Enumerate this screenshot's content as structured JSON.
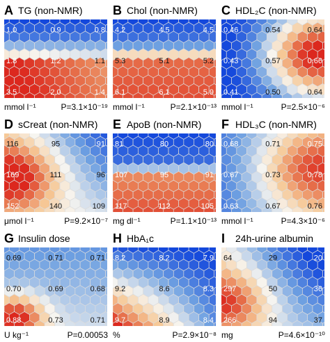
{
  "chart_data": [
    {
      "type": "heatmap",
      "panel_letter": "A",
      "title": "TG (non-NMR)",
      "unit": "mmol l⁻¹",
      "pvalue": "P=3.1×10⁻¹⁹",
      "labels": [
        {
          "pos": "top-left",
          "text": "1.0"
        },
        {
          "pos": "top-mid",
          "text": "0.9"
        },
        {
          "pos": "top-right",
          "text": "0.8"
        },
        {
          "pos": "mid-left",
          "text": "1.8"
        },
        {
          "pos": "mid-mid",
          "text": "1.2"
        },
        {
          "pos": "mid-right",
          "text": "1.1"
        },
        {
          "pos": "bot-left",
          "text": "3.5"
        },
        {
          "pos": "bot-mid",
          "text": "2.0"
        },
        {
          "pos": "bot-right",
          "text": "1.4"
        }
      ]
    },
    {
      "type": "heatmap",
      "panel_letter": "B",
      "title": "Chol (non-NMR)",
      "unit": "mmol l⁻¹",
      "pvalue": "P=2.1×10⁻¹³",
      "labels": [
        {
          "pos": "top-left",
          "text": "4.2"
        },
        {
          "pos": "top-mid",
          "text": "4.5"
        },
        {
          "pos": "top-right",
          "text": "4.5"
        },
        {
          "pos": "mid-left",
          "text": "5.3"
        },
        {
          "pos": "mid-mid",
          "text": "5.1"
        },
        {
          "pos": "mid-right",
          "text": "5.2"
        },
        {
          "pos": "bot-left",
          "text": "6.1"
        },
        {
          "pos": "bot-mid",
          "text": "6.1"
        },
        {
          "pos": "bot-right",
          "text": "5.9"
        }
      ]
    },
    {
      "type": "heatmap",
      "panel_letter": "C",
      "title": "HDL₂C (non-NMR)",
      "unit": "mmol l⁻¹",
      "pvalue": "P=2.5×10⁻⁶",
      "labels": [
        {
          "pos": "top-left",
          "text": "0.46"
        },
        {
          "pos": "top-mid",
          "text": "0.54"
        },
        {
          "pos": "top-right",
          "text": "0.64"
        },
        {
          "pos": "mid-left",
          "text": "0.43"
        },
        {
          "pos": "mid-mid",
          "text": "0.57"
        },
        {
          "pos": "mid-right",
          "text": "0.66"
        },
        {
          "pos": "bot-left",
          "text": "0.41"
        },
        {
          "pos": "bot-mid",
          "text": "0.50"
        },
        {
          "pos": "bot-right",
          "text": "0.64"
        }
      ]
    },
    {
      "type": "heatmap",
      "panel_letter": "D",
      "title": "sCreat (non-NMR)",
      "unit": "μmol l⁻¹",
      "pvalue": "P=9.2×10⁻⁷",
      "labels": [
        {
          "pos": "top-left",
          "text": "116"
        },
        {
          "pos": "top-mid",
          "text": "95"
        },
        {
          "pos": "top-right",
          "text": "91"
        },
        {
          "pos": "mid-left",
          "text": "169"
        },
        {
          "pos": "mid-mid",
          "text": "111"
        },
        {
          "pos": "mid-right",
          "text": "96"
        },
        {
          "pos": "bot-left",
          "text": "152"
        },
        {
          "pos": "bot-mid",
          "text": "140"
        },
        {
          "pos": "bot-right",
          "text": "109"
        }
      ]
    },
    {
      "type": "heatmap",
      "panel_letter": "E",
      "title": "ApoB (non-NMR)",
      "unit": "mg dl⁻¹",
      "pvalue": "P=1.1×10⁻¹³",
      "labels": [
        {
          "pos": "top-left",
          "text": "81"
        },
        {
          "pos": "top-mid",
          "text": "80"
        },
        {
          "pos": "top-right",
          "text": "80"
        },
        {
          "pos": "mid-left",
          "text": "107"
        },
        {
          "pos": "mid-mid",
          "text": "95"
        },
        {
          "pos": "mid-right",
          "text": "91"
        },
        {
          "pos": "bot-left",
          "text": "117"
        },
        {
          "pos": "bot-mid",
          "text": "112"
        },
        {
          "pos": "bot-right",
          "text": "105"
        }
      ]
    },
    {
      "type": "heatmap",
      "panel_letter": "F",
      "title": "HDL₃C (non-NMR)",
      "unit": "mmol l⁻¹",
      "pvalue": "P=4.3×10⁻⁶",
      "labels": [
        {
          "pos": "top-left",
          "text": "0.68"
        },
        {
          "pos": "top-mid",
          "text": "0.71"
        },
        {
          "pos": "top-right",
          "text": "0.75"
        },
        {
          "pos": "mid-left",
          "text": "0.67"
        },
        {
          "pos": "mid-mid",
          "text": "0.73"
        },
        {
          "pos": "mid-right",
          "text": "0.78"
        },
        {
          "pos": "bot-left",
          "text": "0.63"
        },
        {
          "pos": "bot-mid",
          "text": "0.67"
        },
        {
          "pos": "bot-right",
          "text": "0.76"
        }
      ]
    },
    {
      "type": "heatmap",
      "panel_letter": "G",
      "title": "Insulin dose",
      "unit": "U kg⁻¹",
      "pvalue": "P=0.00053",
      "labels": [
        {
          "pos": "top-left",
          "text": "0.69"
        },
        {
          "pos": "top-mid",
          "text": "0.71"
        },
        {
          "pos": "top-right",
          "text": "0.71"
        },
        {
          "pos": "mid-left",
          "text": "0.70"
        },
        {
          "pos": "mid-mid",
          "text": "0.69"
        },
        {
          "pos": "mid-right",
          "text": "0.68"
        },
        {
          "pos": "bot-left",
          "text": "0.88"
        },
        {
          "pos": "bot-mid",
          "text": "0.73"
        },
        {
          "pos": "bot-right",
          "text": "0.71"
        }
      ]
    },
    {
      "type": "heatmap",
      "panel_letter": "H",
      "title": "HbA₁c",
      "unit": "%",
      "pvalue": "P=2.9×10⁻⁸",
      "labels": [
        {
          "pos": "top-left",
          "text": "8.2"
        },
        {
          "pos": "top-mid",
          "text": "8.2"
        },
        {
          "pos": "top-right",
          "text": "7.9"
        },
        {
          "pos": "mid-left",
          "text": "9.2"
        },
        {
          "pos": "mid-mid",
          "text": "8.6"
        },
        {
          "pos": "mid-right",
          "text": "8.3"
        },
        {
          "pos": "bot-left",
          "text": "9.7"
        },
        {
          "pos": "bot-mid",
          "text": "8.9"
        },
        {
          "pos": "bot-right",
          "text": "8.4"
        }
      ]
    },
    {
      "type": "heatmap",
      "panel_letter": "I",
      "title": "24h-urine albumin",
      "unit": "mg",
      "pvalue": "P=4.6×10⁻¹⁰",
      "labels": [
        {
          "pos": "top-left",
          "text": "64"
        },
        {
          "pos": "top-mid",
          "text": "29"
        },
        {
          "pos": "top-right",
          "text": "20"
        },
        {
          "pos": "mid-left",
          "text": "297"
        },
        {
          "pos": "mid-mid",
          "text": "50"
        },
        {
          "pos": "mid-right",
          "text": "36"
        },
        {
          "pos": "bot-left",
          "text": "266"
        },
        {
          "pos": "bot-mid",
          "text": "94"
        },
        {
          "pos": "bot-right",
          "text": "37"
        }
      ]
    }
  ]
}
